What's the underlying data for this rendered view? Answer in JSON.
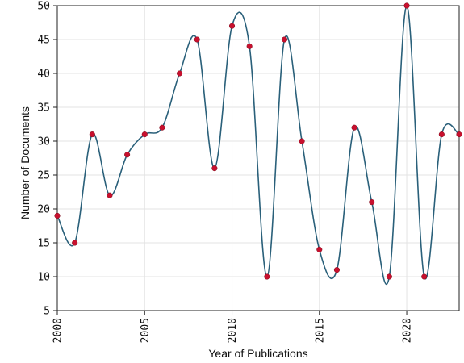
{
  "chart_data": {
    "type": "line",
    "title": "",
    "xlabel": "Year of Publications",
    "ylabel": "Number of Documents",
    "xlim": [
      2000,
      2023
    ],
    "ylim": [
      5,
      50
    ],
    "x_ticks": [
      2000,
      2005,
      2010,
      2015,
      2020
    ],
    "y_ticks": [
      5,
      10,
      15,
      20,
      25,
      30,
      35,
      40,
      45,
      50
    ],
    "grid": true,
    "legend": "none",
    "line_color": "#2a607a",
    "marker_color": "#c8102e",
    "series": [
      {
        "x": [
          2000,
          2001,
          2002,
          2003,
          2004,
          2005,
          2006,
          2007,
          2008,
          2009,
          2010,
          2011,
          2012,
          2013,
          2014,
          2015,
          2016,
          2017,
          2018,
          2019,
          2020,
          2021,
          2022,
          2023
        ],
        "values": [
          19,
          15,
          31,
          22,
          28,
          31,
          32,
          40,
          45,
          26,
          47,
          44,
          10,
          45,
          30,
          14,
          11,
          32,
          21,
          10,
          50,
          10,
          31,
          31
        ]
      }
    ]
  }
}
